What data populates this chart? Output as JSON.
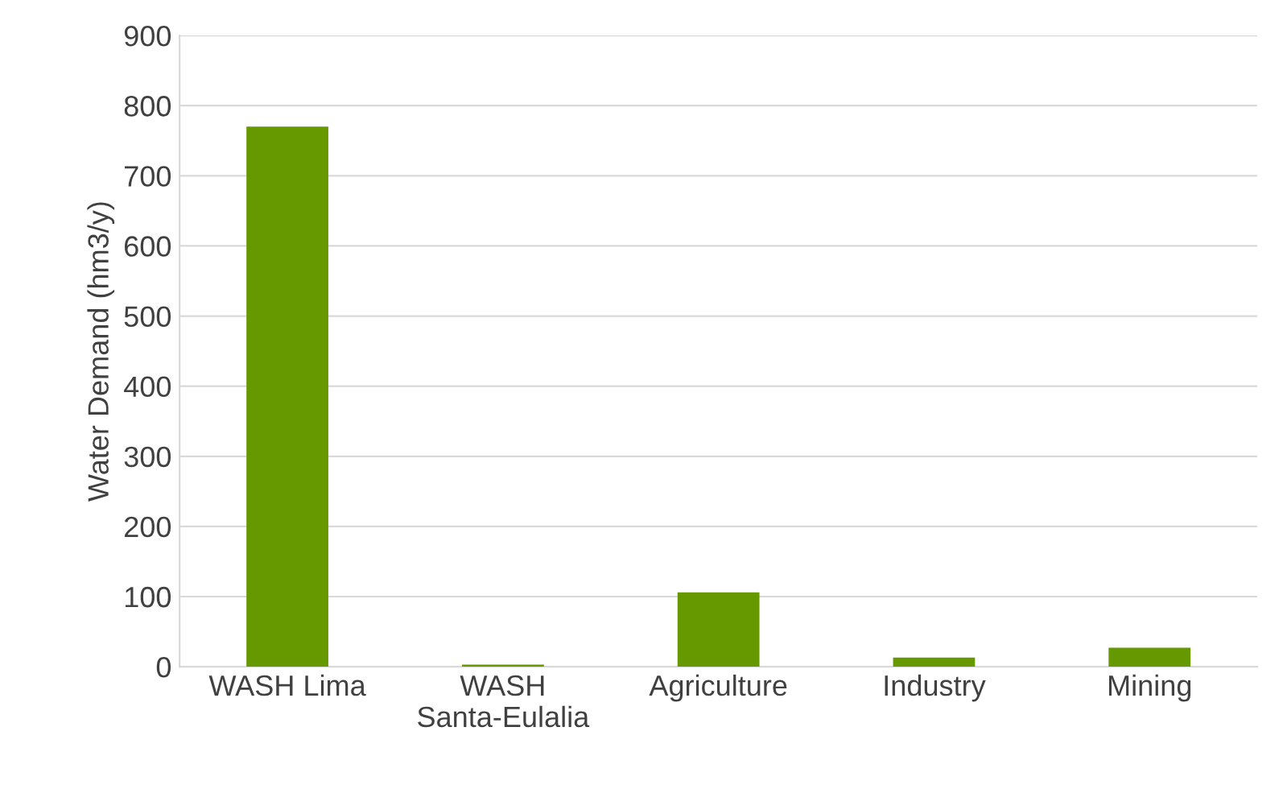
{
  "chart_data": {
    "type": "bar",
    "ylabel": "Water Demand (hm3/y)",
    "categories": [
      "WASH Lima",
      "WASH\nSanta-Eulalia",
      "Agriculture",
      "Industry",
      "Mining"
    ],
    "values": [
      770,
      3,
      106,
      13,
      27
    ],
    "color": "#669900",
    "ylim": [
      0,
      900
    ],
    "yticks": [
      0,
      100,
      200,
      300,
      400,
      500,
      600,
      700,
      800,
      900
    ],
    "grid": "y"
  }
}
